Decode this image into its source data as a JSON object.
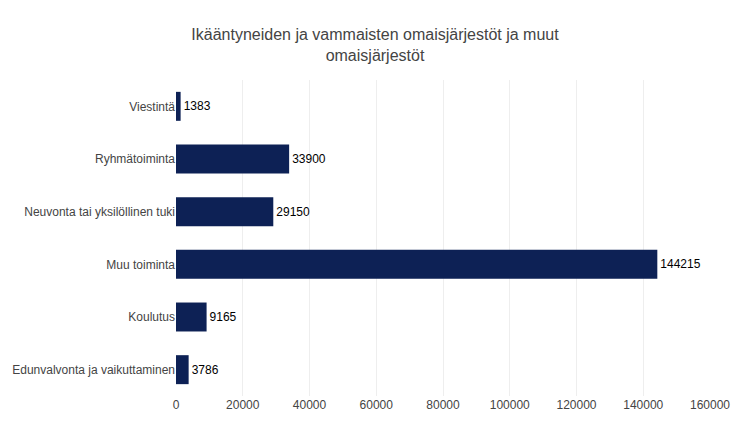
{
  "chart_data": {
    "type": "bar",
    "orientation": "horizontal",
    "title": "Ikääntyneiden ja vammaisten omaisjärjestöt ja muut\nomaisjärjestöt",
    "categories": [
      "Viestintä",
      "Ryhmätoiminta",
      "Neuvonta tai yksilöllinen tuki",
      "Muu toiminta",
      "Koulutus",
      "Edunvalvonta ja vaikuttaminen"
    ],
    "values": [
      1383,
      33900,
      29150,
      144215,
      9165,
      3786
    ],
    "color": "#0d2155",
    "xlim": [
      0,
      160000
    ],
    "xticks": [
      0,
      20000,
      40000,
      60000,
      80000,
      100000,
      120000,
      140000,
      160000
    ],
    "grid": true,
    "data_labels": true
  }
}
